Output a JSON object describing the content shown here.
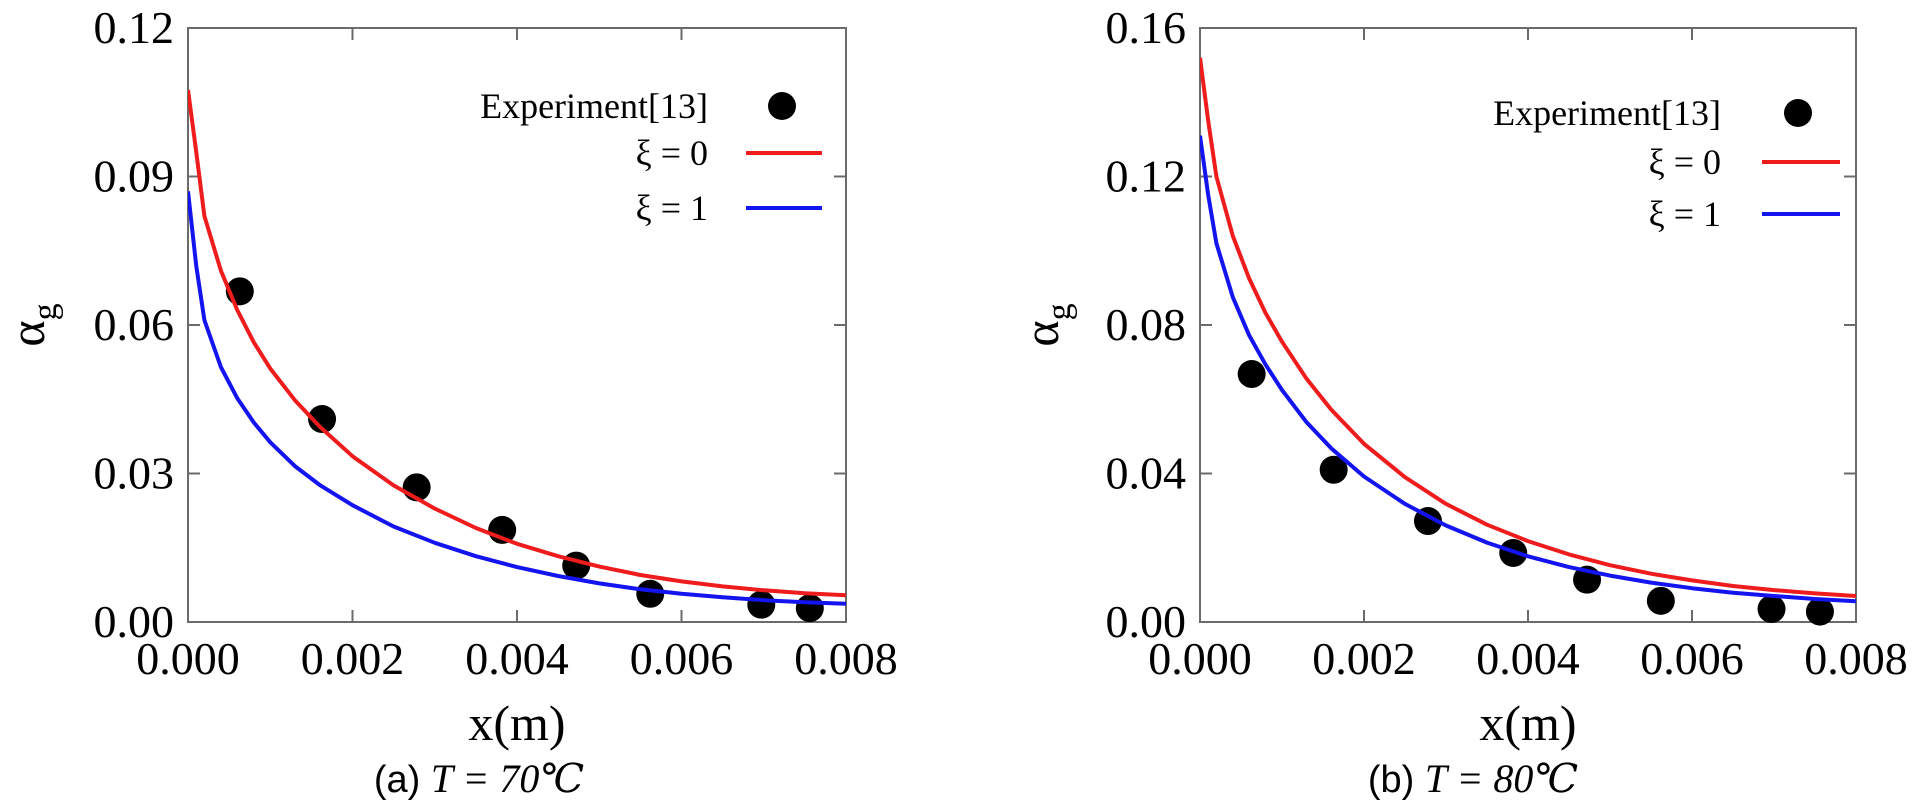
{
  "chart_data": [
    {
      "type": "scatter+line",
      "panel_id": "a",
      "caption": {
        "prefix": "(a)",
        "math": "T = 70℃"
      },
      "xlabel": "x(m)",
      "ylabel": "α",
      "ylabel_sub": "g",
      "xlim": [
        0.0,
        0.008
      ],
      "ylim": [
        0.0,
        0.12
      ],
      "xticks": [
        "0.000",
        "0.002",
        "0.004",
        "0.006",
        "0.008"
      ],
      "yticks": [
        "0.00",
        "0.03",
        "0.06",
        "0.09",
        "0.12"
      ],
      "grid": false,
      "legend_position": "top-right",
      "series": [
        {
          "name": "Experiment[13]",
          "kind": "marker",
          "color": "#000000",
          "x": [
            0.00063,
            0.00163,
            0.00278,
            0.00382,
            0.00472,
            0.00562,
            0.00697,
            0.00756
          ],
          "y": [
            0.0668,
            0.041,
            0.0272,
            0.0186,
            0.0114,
            0.0057,
            0.0035,
            0.0028
          ]
        },
        {
          "name": "ξ = 0",
          "kind": "line",
          "color": "#ee1c1c",
          "x": [
            0.0,
            0.0001,
            0.0002,
            0.0004,
            0.0006,
            0.0008,
            0.001,
            0.0013,
            0.0016,
            0.002,
            0.0025,
            0.003,
            0.0035,
            0.004,
            0.0045,
            0.005,
            0.0055,
            0.006,
            0.0065,
            0.007,
            0.0075,
            0.008
          ],
          "y": [
            0.1075,
            0.095,
            0.082,
            0.071,
            0.063,
            0.0565,
            0.0512,
            0.0448,
            0.0395,
            0.0335,
            0.0276,
            0.0229,
            0.019,
            0.0158,
            0.0133,
            0.0112,
            0.0095,
            0.0082,
            0.0072,
            0.0064,
            0.0058,
            0.0054
          ]
        },
        {
          "name": "ξ = 1",
          "kind": "line",
          "color": "#1414f0",
          "x": [
            0.0,
            0.0001,
            0.0002,
            0.0004,
            0.0006,
            0.0008,
            0.001,
            0.0013,
            0.0016,
            0.002,
            0.0025,
            0.003,
            0.0035,
            0.004,
            0.0045,
            0.005,
            0.0055,
            0.006,
            0.0065,
            0.007,
            0.0075,
            0.008
          ],
          "y": [
            0.087,
            0.072,
            0.061,
            0.0515,
            0.0452,
            0.0403,
            0.0363,
            0.0315,
            0.0277,
            0.0236,
            0.0193,
            0.016,
            0.0133,
            0.0111,
            0.0093,
            0.0078,
            0.0066,
            0.0057,
            0.005,
            0.0044,
            0.004,
            0.0037
          ]
        }
      ]
    },
    {
      "type": "scatter+line",
      "panel_id": "b",
      "caption": {
        "prefix": "(b)",
        "math": "T = 80℃"
      },
      "xlabel": "x(m)",
      "ylabel": "α",
      "ylabel_sub": "g",
      "xlim": [
        0.0,
        0.008
      ],
      "ylim": [
        0.0,
        0.16
      ],
      "xticks": [
        "0.000",
        "0.002",
        "0.004",
        "0.006",
        "0.008"
      ],
      "yticks": [
        "0.00",
        "0.04",
        "0.08",
        "0.12",
        "0.16"
      ],
      "grid": false,
      "legend_position": "top-right",
      "series": [
        {
          "name": "Experiment[13]",
          "kind": "marker",
          "color": "#000000",
          "x": [
            0.00063,
            0.00163,
            0.00278,
            0.00382,
            0.00472,
            0.00562,
            0.00697,
            0.00756
          ],
          "y": [
            0.0668,
            0.041,
            0.0272,
            0.0186,
            0.0114,
            0.0057,
            0.0035,
            0.0028
          ]
        },
        {
          "name": "ξ = 0",
          "kind": "line",
          "color": "#ee1c1c",
          "x": [
            0.0,
            0.0001,
            0.0002,
            0.0004,
            0.0006,
            0.0008,
            0.001,
            0.0013,
            0.0016,
            0.002,
            0.0025,
            0.003,
            0.0035,
            0.004,
            0.0045,
            0.005,
            0.0055,
            0.006,
            0.0065,
            0.007,
            0.0075,
            0.008
          ],
          "y": [
            0.152,
            0.135,
            0.12,
            0.104,
            0.0925,
            0.0832,
            0.0755,
            0.0655,
            0.0572,
            0.048,
            0.039,
            0.0318,
            0.0262,
            0.0218,
            0.0182,
            0.0153,
            0.013,
            0.0112,
            0.0097,
            0.0086,
            0.0077,
            0.007
          ]
        },
        {
          "name": "ξ = 1",
          "kind": "line",
          "color": "#1414f0",
          "x": [
            0.0,
            0.0001,
            0.0002,
            0.0004,
            0.0006,
            0.0008,
            0.001,
            0.0013,
            0.0016,
            0.002,
            0.0025,
            0.003,
            0.0035,
            0.004,
            0.0045,
            0.005,
            0.0055,
            0.006,
            0.0065,
            0.007,
            0.0075,
            0.008
          ],
          "y": [
            0.131,
            0.115,
            0.102,
            0.0875,
            0.0772,
            0.0693,
            0.0625,
            0.0538,
            0.0468,
            0.0392,
            0.0318,
            0.026,
            0.0214,
            0.0177,
            0.0148,
            0.0125,
            0.0106,
            0.0091,
            0.0079,
            0.007,
            0.0062,
            0.0056
          ]
        }
      ]
    }
  ]
}
